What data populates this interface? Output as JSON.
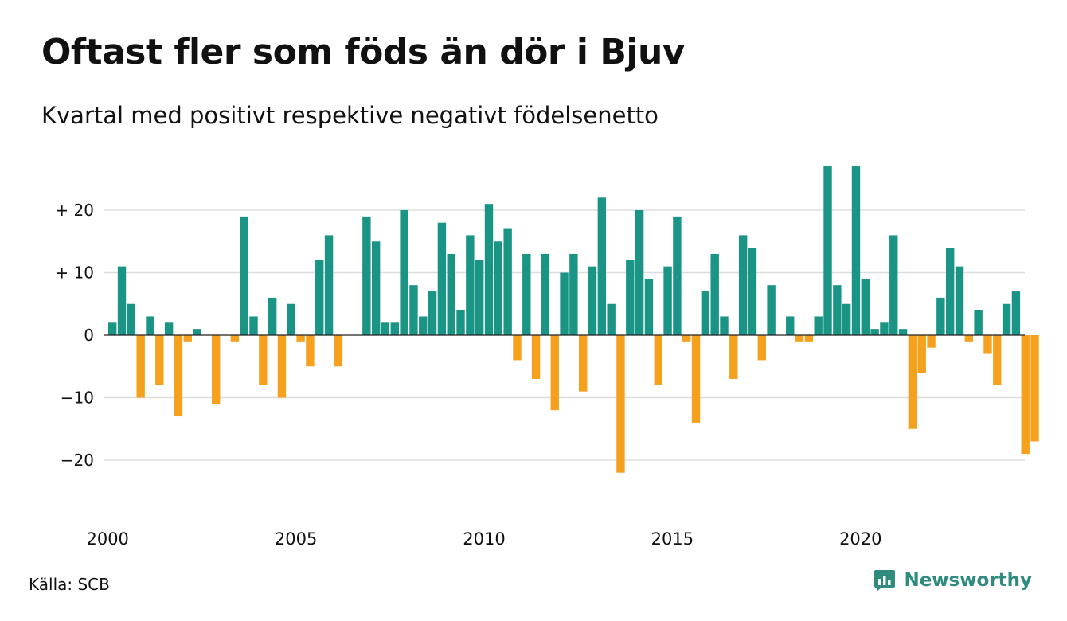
{
  "header": {
    "title": "Oftast fler som föds än dör i Bjuv",
    "subtitle": "Kvartal med positivt respektive negativt födelsenetto"
  },
  "footer": {
    "source": "Källa: SCB",
    "brand": "Newsworthy",
    "brand_icon": "newsworthy-logo-icon"
  },
  "colors": {
    "positive": "#1a9485",
    "negative": "#f5a11e",
    "grid": "#dddddd",
    "zero_line": "#222222",
    "brand": "#2e8b7e"
  },
  "chart_data": {
    "type": "bar",
    "title": "Oftast fler som föds än dör i Bjuv",
    "subtitle": "Kvartal med positivt respektive negativt födelsenetto",
    "xlabel": "",
    "ylabel": "",
    "ylim": [
      -27,
      27
    ],
    "yticks": [
      20,
      10,
      0,
      -10,
      -20
    ],
    "ytick_labels": [
      "+ 20",
      "+ 10",
      "0",
      "−10",
      "−20"
    ],
    "x_start_year": 2000,
    "xticks": [
      2000,
      2005,
      2010,
      2015,
      2020
    ],
    "xtick_labels": [
      "2000",
      "2005",
      "2010",
      "2015",
      "2020"
    ],
    "grid": true,
    "categories": [
      "2000 K1",
      "2000 K2",
      "2000 K3",
      "2000 K4",
      "2001 K1",
      "2001 K2",
      "2001 K3",
      "2001 K4",
      "2002 K1",
      "2002 K2",
      "2002 K3",
      "2002 K4",
      "2003 K1",
      "2003 K2",
      "2003 K3",
      "2003 K4",
      "2004 K1",
      "2004 K2",
      "2004 K3",
      "2004 K4",
      "2005 K1",
      "2005 K2",
      "2005 K3",
      "2005 K4",
      "2006 K1",
      "2006 K2",
      "2006 K3",
      "2006 K4",
      "2007 K1",
      "2007 K2",
      "2007 K3",
      "2007 K4",
      "2008 K1",
      "2008 K2",
      "2008 K3",
      "2008 K4",
      "2009 K1",
      "2009 K2",
      "2009 K3",
      "2009 K4",
      "2010 K1",
      "2010 K2",
      "2010 K3",
      "2010 K4",
      "2011 K1",
      "2011 K2",
      "2011 K3",
      "2011 K4",
      "2012 K1",
      "2012 K2",
      "2012 K3",
      "2012 K4",
      "2013 K1",
      "2013 K2",
      "2013 K3",
      "2013 K4",
      "2014 K1",
      "2014 K2",
      "2014 K3",
      "2014 K4",
      "2015 K1",
      "2015 K2",
      "2015 K3",
      "2015 K4",
      "2016 K1",
      "2016 K2",
      "2016 K3",
      "2016 K4",
      "2017 K1",
      "2017 K2",
      "2017 K3",
      "2017 K4",
      "2018 K1",
      "2018 K2",
      "2018 K3",
      "2018 K4",
      "2019 K1",
      "2019 K2",
      "2019 K3",
      "2019 K4",
      "2020 K1",
      "2020 K2",
      "2020 K3",
      "2020 K4",
      "2021 K1",
      "2021 K2",
      "2021 K3",
      "2021 K4",
      "2022 K1",
      "2022 K2",
      "2022 K3",
      "2022 K4",
      "2023 K1",
      "2023 K2",
      "2023 K3",
      "2023 K4",
      "2024 K1",
      "2024 K2",
      "2024 K3"
    ],
    "values": [
      2,
      11,
      5,
      -10,
      3,
      -8,
      2,
      -13,
      -1,
      1,
      0,
      -11,
      0,
      -1,
      19,
      3,
      -8,
      6,
      -10,
      5,
      -1,
      -5,
      12,
      16,
      -5,
      0,
      0,
      19,
      15,
      2,
      2,
      20,
      8,
      3,
      7,
      18,
      13,
      4,
      16,
      12,
      21,
      15,
      17,
      -4,
      13,
      -7,
      13,
      -12,
      10,
      13,
      -9,
      11,
      22,
      5,
      -22,
      12,
      20,
      9,
      -8,
      11,
      19,
      -1,
      -14,
      7,
      13,
      3,
      -7,
      16,
      14,
      -4,
      8,
      0,
      3,
      -1,
      -1,
      3,
      27,
      8,
      5,
      27,
      9,
      1,
      2,
      16,
      1,
      -15,
      -6,
      -2,
      6,
      14,
      11,
      -1,
      4,
      -3,
      -8,
      5,
      7,
      -19,
      -17
    ]
  }
}
